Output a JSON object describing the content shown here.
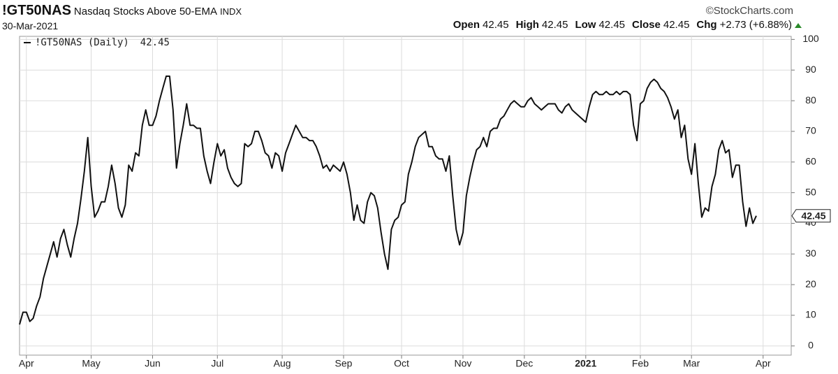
{
  "chart_data": {
    "type": "line",
    "title": "!GT50NAS",
    "subtitle": "Nasdaq Stocks Above 50-EMA",
    "exchange": "INDX",
    "source": "©StockCharts.com",
    "date": "30-Mar-2021",
    "quote": [
      {
        "label": "Open",
        "value": 42.45
      },
      {
        "label": "High",
        "value": 42.45
      },
      {
        "label": "Low",
        "value": 42.45
      },
      {
        "label": "Close",
        "value": 42.45
      },
      {
        "label": "Chg",
        "value": 2.73,
        "value_label": "+2.73 (+6.88%)"
      }
    ],
    "categories": [
      null,
      null,
      "Apr",
      null,
      null,
      null,
      null,
      null,
      null,
      null,
      null,
      null,
      null,
      null,
      null,
      null,
      null,
      null,
      null,
      null,
      null,
      "May",
      null,
      null,
      null,
      null,
      null,
      null,
      null,
      null,
      null,
      null,
      null,
      null,
      null,
      null,
      null,
      null,
      null,
      "Jun",
      null,
      null,
      null,
      null,
      null,
      null,
      null,
      null,
      null,
      null,
      null,
      null,
      null,
      null,
      null,
      null,
      null,
      null,
      "Jul",
      null,
      null,
      null,
      null,
      null,
      null,
      null,
      null,
      null,
      null,
      null,
      null,
      null,
      null,
      null,
      null,
      null,
      null,
      "Aug",
      null,
      null,
      null,
      null,
      null,
      null,
      null,
      null,
      null,
      null,
      null,
      null,
      null,
      null,
      null,
      null,
      null,
      "Sep",
      null,
      null,
      null,
      null,
      null,
      null,
      null,
      null,
      null,
      null,
      null,
      null,
      null,
      null,
      null,
      null,
      "Oct",
      null,
      null,
      null,
      null,
      null,
      null,
      null,
      null,
      null,
      null,
      null,
      null,
      null,
      null,
      null,
      null,
      null,
      "Nov",
      null,
      null,
      null,
      null,
      null,
      null,
      null,
      null,
      null,
      null,
      null,
      null,
      null,
      null,
      null,
      null,
      null,
      "Dec",
      null,
      null,
      null,
      null,
      null,
      null,
      null,
      null,
      null,
      null,
      null,
      null,
      null,
      null,
      null,
      null,
      null,
      "2021",
      null,
      null,
      null,
      null,
      null,
      null,
      null,
      null,
      null,
      null,
      null,
      null,
      null,
      null,
      null,
      "Feb",
      null,
      null,
      null,
      null,
      null,
      null,
      null,
      null,
      null,
      null,
      null,
      null,
      null,
      null,
      "Mar",
      null,
      null,
      null,
      null,
      null,
      null,
      null,
      null,
      null,
      null,
      null,
      null,
      null,
      null,
      null,
      null,
      null,
      null,
      null,
      null,
      "Apr"
    ],
    "series": [
      {
        "name": "!GT50NAS (Daily)",
        "color": "#111111",
        "values": [
          7,
          11,
          11,
          8,
          9,
          13,
          16,
          22,
          26,
          30,
          34,
          29,
          35,
          38,
          33,
          29,
          35,
          40,
          48,
          57,
          68,
          52,
          42,
          44,
          47,
          47,
          52,
          59,
          53,
          45,
          42,
          46,
          59,
          57,
          63,
          62,
          72,
          77,
          72,
          72,
          75,
          80,
          84,
          88,
          88,
          77,
          58,
          66,
          72,
          79,
          72,
          72,
          71,
          71,
          62,
          57,
          53,
          60,
          66,
          62,
          64,
          58,
          55,
          53,
          52,
          53,
          66,
          65,
          66,
          70,
          70,
          67,
          63,
          62,
          58,
          63,
          62,
          57,
          63,
          66,
          69,
          72,
          70,
          68,
          68,
          67,
          67,
          65,
          62,
          58,
          59,
          57,
          59,
          58,
          57,
          60,
          56,
          50,
          41,
          46,
          41,
          40,
          47,
          50,
          49,
          45,
          37,
          30,
          25,
          38,
          41,
          42,
          46,
          47,
          56,
          60,
          65,
          68,
          69,
          70,
          65,
          65,
          62,
          61,
          61,
          57,
          62,
          49,
          38,
          33,
          37,
          49,
          55,
          60,
          64,
          65,
          68,
          65,
          70,
          71,
          71,
          74,
          75,
          77,
          79,
          80,
          79,
          78,
          78,
          80,
          81,
          79,
          78,
          77,
          78,
          79,
          79,
          79,
          77,
          76,
          78,
          79,
          77,
          76,
          75,
          74,
          73,
          78,
          82,
          83,
          82,
          82,
          83,
          82,
          82,
          83,
          82,
          83,
          83,
          82,
          72,
          67,
          79,
          80,
          84,
          86,
          87,
          86,
          84,
          83,
          81,
          78,
          74,
          77,
          68,
          72,
          61,
          56,
          66,
          53,
          42,
          45,
          44,
          52,
          56,
          64,
          67,
          63,
          64,
          55,
          59,
          59,
          47,
          39,
          45,
          40,
          42.45,
          null,
          null
        ]
      }
    ],
    "ylim": [
      -3,
      101
    ],
    "yticks": [
      0,
      10,
      20,
      30,
      40,
      50,
      60,
      70,
      80,
      90,
      100
    ],
    "grid": true
  }
}
